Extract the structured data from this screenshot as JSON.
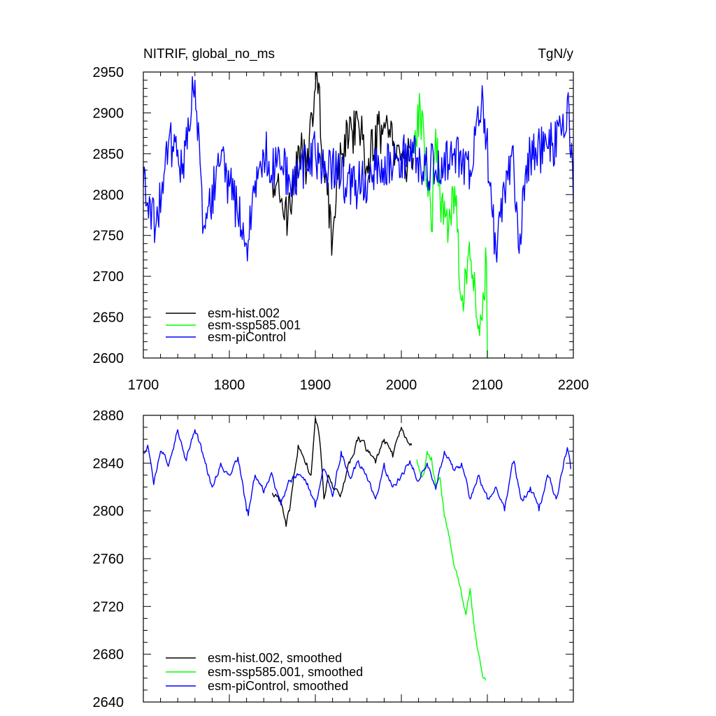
{
  "chart_data": [
    {
      "type": "line",
      "title": "NITRIF, global_no_ms",
      "units": "TgN/y",
      "xlabel": "",
      "ylabel": "",
      "xlim": [
        1700,
        2200
      ],
      "ylim": [
        2600,
        2950
      ],
      "x_ticks": [
        1700,
        1800,
        1900,
        2000,
        2100,
        2200
      ],
      "y_ticks": [
        2600,
        2650,
        2700,
        2750,
        2800,
        2850,
        2900,
        2950
      ],
      "legend_position": "bottom-left",
      "series": [
        {
          "name": "esm-hist.002",
          "color": "#000000",
          "x_range": [
            1850,
            2014
          ],
          "keypoints": [
            [
              1850,
              2815
            ],
            [
              1865,
              2790
            ],
            [
              1867,
              2750
            ],
            [
              1880,
              2860
            ],
            [
              1890,
              2830
            ],
            [
              1902,
              2945
            ],
            [
              1910,
              2830
            ],
            [
              1920,
              2745
            ],
            [
              1930,
              2850
            ],
            [
              1950,
              2890
            ],
            [
              1960,
              2835
            ],
            [
              1975,
              2880
            ],
            [
              1990,
              2860
            ],
            [
              2000,
              2840
            ],
            [
              2014,
              2845
            ]
          ]
        },
        {
          "name": "esm-ssp585.001",
          "color": "#00ff00",
          "x_range": [
            2015,
            2100
          ],
          "keypoints": [
            [
              2015,
              2850
            ],
            [
              2022,
              2905
            ],
            [
              2030,
              2820
            ],
            [
              2035,
              2755
            ],
            [
              2040,
              2880
            ],
            [
              2045,
              2800
            ],
            [
              2055,
              2760
            ],
            [
              2062,
              2810
            ],
            [
              2070,
              2670
            ],
            [
              2080,
              2720
            ],
            [
              2090,
              2640
            ],
            [
              2095,
              2680
            ],
            [
              2099,
              2715
            ],
            [
              2100,
              2600
            ]
          ]
        },
        {
          "name": "esm-piControl",
          "color": "#0000ff",
          "x_range": [
            1700,
            2200
          ],
          "keypoints": [
            [
              1700,
              2810
            ],
            [
              1715,
              2765
            ],
            [
              1730,
              2870
            ],
            [
              1745,
              2825
            ],
            [
              1760,
              2940
            ],
            [
              1770,
              2760
            ],
            [
              1790,
              2840
            ],
            [
              1800,
              2810
            ],
            [
              1820,
              2740
            ],
            [
              1840,
              2850
            ],
            [
              1860,
              2830
            ],
            [
              1880,
              2820
            ],
            [
              1900,
              2850
            ],
            [
              1930,
              2820
            ],
            [
              1950,
              2810
            ],
            [
              1970,
              2830
            ],
            [
              2000,
              2850
            ],
            [
              2040,
              2830
            ],
            [
              2060,
              2850
            ],
            [
              2080,
              2830
            ],
            [
              2095,
              2915
            ],
            [
              2110,
              2730
            ],
            [
              2130,
              2860
            ],
            [
              2136,
              2735
            ],
            [
              2150,
              2850
            ],
            [
              2175,
              2860
            ],
            [
              2195,
              2905
            ],
            [
              2200,
              2790
            ]
          ]
        }
      ]
    },
    {
      "type": "line",
      "title": "",
      "xlabel": "",
      "ylabel": "",
      "xlim": [
        1700,
        2200
      ],
      "ylim": [
        2640,
        2880
      ],
      "x_ticks": [
        1700,
        1800,
        1900,
        2000,
        2100,
        2200
      ],
      "y_ticks": [
        2640,
        2680,
        2720,
        2760,
        2800,
        2840,
        2880
      ],
      "legend_position": "bottom-left",
      "series": [
        {
          "name": "esm-hist.002, smoothed",
          "color": "#000000",
          "x_range": [
            1850,
            2012
          ],
          "keypoints": [
            [
              1850,
              2815
            ],
            [
              1860,
              2808
            ],
            [
              1866,
              2787
            ],
            [
              1870,
              2800
            ],
            [
              1875,
              2830
            ],
            [
              1880,
              2855
            ],
            [
              1890,
              2840
            ],
            [
              1895,
              2830
            ],
            [
              1900,
              2878
            ],
            [
              1905,
              2860
            ],
            [
              1910,
              2810
            ],
            [
              1915,
              2830
            ],
            [
              1920,
              2820
            ],
            [
              1930,
              2815
            ],
            [
              1940,
              2840
            ],
            [
              1950,
              2862
            ],
            [
              1960,
              2850
            ],
            [
              1970,
              2840
            ],
            [
              1980,
              2860
            ],
            [
              1990,
              2845
            ],
            [
              2000,
              2870
            ],
            [
              2010,
              2855
            ],
            [
              2012,
              2855
            ]
          ]
        },
        {
          "name": "esm-ssp585.001, smoothed",
          "color": "#00ff00",
          "x_range": [
            2018,
            2098
          ],
          "keypoints": [
            [
              2018,
              2843
            ],
            [
              2025,
              2830
            ],
            [
              2030,
              2850
            ],
            [
              2035,
              2845
            ],
            [
              2040,
              2820
            ],
            [
              2045,
              2828
            ],
            [
              2050,
              2795
            ],
            [
              2055,
              2780
            ],
            [
              2060,
              2760
            ],
            [
              2065,
              2745
            ],
            [
              2070,
              2730
            ],
            [
              2075,
              2713
            ],
            [
              2080,
              2735
            ],
            [
              2085,
              2700
            ],
            [
              2090,
              2680
            ],
            [
              2095,
              2660
            ],
            [
              2098,
              2658
            ]
          ]
        },
        {
          "name": "esm-piControl, smoothed",
          "color": "#0000ff",
          "x_range": [
            1700,
            2197
          ],
          "keypoints": [
            [
              1700,
              2850
            ],
            [
              1705,
              2855
            ],
            [
              1712,
              2822
            ],
            [
              1720,
              2850
            ],
            [
              1730,
              2840
            ],
            [
              1740,
              2868
            ],
            [
              1750,
              2842
            ],
            [
              1760,
              2868
            ],
            [
              1770,
              2845
            ],
            [
              1780,
              2820
            ],
            [
              1790,
              2840
            ],
            [
              1800,
              2830
            ],
            [
              1810,
              2845
            ],
            [
              1820,
              2800
            ],
            [
              1822,
              2796
            ],
            [
              1830,
              2830
            ],
            [
              1840,
              2815
            ],
            [
              1850,
              2830
            ],
            [
              1860,
              2805
            ],
            [
              1870,
              2825
            ],
            [
              1880,
              2830
            ],
            [
              1890,
              2822
            ],
            [
              1900,
              2803
            ],
            [
              1910,
              2835
            ],
            [
              1920,
              2812
            ],
            [
              1930,
              2850
            ],
            [
              1940,
              2828
            ],
            [
              1950,
              2842
            ],
            [
              1960,
              2828
            ],
            [
              1970,
              2810
            ],
            [
              1980,
              2840
            ],
            [
              1990,
              2820
            ],
            [
              2000,
              2830
            ],
            [
              2010,
              2842
            ],
            [
              2020,
              2825
            ],
            [
              2030,
              2840
            ],
            [
              2040,
              2818
            ],
            [
              2050,
              2850
            ],
            [
              2060,
              2835
            ],
            [
              2070,
              2840
            ],
            [
              2080,
              2810
            ],
            [
              2090,
              2830
            ],
            [
              2100,
              2810
            ],
            [
              2110,
              2820
            ],
            [
              2120,
              2800
            ],
            [
              2130,
              2840
            ],
            [
              2140,
              2810
            ],
            [
              2150,
              2820
            ],
            [
              2160,
              2800
            ],
            [
              2170,
              2830
            ],
            [
              2180,
              2810
            ],
            [
              2190,
              2845
            ],
            [
              2193,
              2853
            ],
            [
              2197,
              2835
            ]
          ]
        }
      ]
    }
  ]
}
